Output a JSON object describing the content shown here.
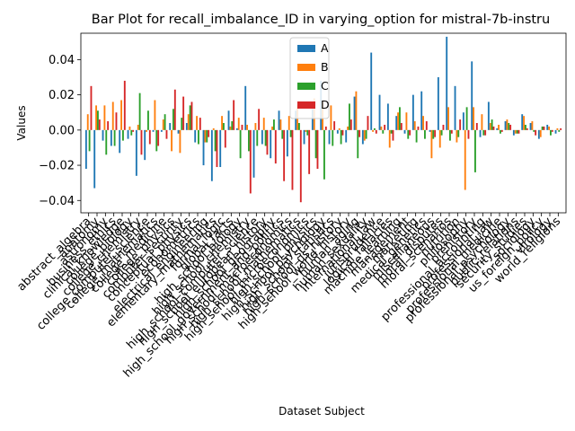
{
  "chart_data": {
    "type": "bar",
    "title": "Bar Plot for recall_imbalance_ID in varying_option for mistral-7b-instru",
    "xlabel": "Dataset Subject",
    "ylabel": "Values",
    "ylim": [
      -0.047,
      0.055
    ],
    "yticks": [
      -0.04,
      -0.02,
      0.0,
      0.02,
      0.04
    ],
    "ytick_labels": [
      "−0.04",
      "−0.02",
      "0.00",
      "0.02",
      "0.04"
    ],
    "legend_position": "upper center",
    "grid": false,
    "categories": [
      "abstract_algebra",
      "anatomy",
      "astronomy",
      "business_ethics",
      "clinical_knowledge",
      "college_biology",
      "college_chemistry",
      "college_computer_science",
      "college_mathematics",
      "college_medicine",
      "college_physics",
      "computer_security",
      "conceptual_physics",
      "econometrics",
      "electrical_engineering",
      "elementary_mathematics",
      "formal_logic",
      "global_facts",
      "high_school_biology",
      "high_school_chemistry",
      "high_school_computer_science",
      "high_school_european_history",
      "high_school_geography",
      "high_school_government_and_politics",
      "high_school_macroeconomics",
      "high_school_mathematics",
      "high_school_microeconomics",
      "high_school_physics",
      "high_school_psychology",
      "high_school_statistics",
      "high_school_us_history",
      "high_school_world_history",
      "human_aging",
      "human_sexuality",
      "international_law",
      "jurisprudence",
      "logical_fallacies",
      "machine_learning",
      "management",
      "marketing",
      "medical_genetics",
      "miscellaneous",
      "moral_disputes",
      "moral_scenarios",
      "nutrition",
      "philosophy",
      "prehistory",
      "professional_accounting",
      "professional_law",
      "professional_medicine",
      "professional_psychology",
      "public_relations",
      "security_studies",
      "sociology",
      "us_foreign_policy",
      "virology",
      "world_religions"
    ],
    "series": [
      {
        "name": "A",
        "color": "#1f77b4",
        "values": [
          -0.022,
          -0.033,
          -0.006,
          -0.009,
          -0.013,
          -0.005,
          -0.026,
          -0.017,
          -0.001,
          -0.001,
          0.004,
          -0.002,
          0.004,
          -0.007,
          -0.02,
          -0.029,
          -0.021,
          0.011,
          0.001,
          0.025,
          -0.027,
          -0.008,
          -0.016,
          0.011,
          -0.015,
          0.011,
          -0.008,
          0.012,
          0.028,
          -0.008,
          -0.002,
          -0.007,
          0.019,
          -0.008,
          0.044,
          0.02,
          0.015,
          0.008,
          -0.002,
          0.02,
          0.022,
          -0.001,
          0.03,
          0.053,
          0.025,
          0.01,
          0.039,
          -0.004,
          0.016,
          0.001,
          0.005,
          -0.003,
          0.009,
          0.004,
          -0.005,
          0.003,
          -0.002
        ]
      },
      {
        "name": "B",
        "color": "#ff7f0e",
        "values": [
          0.009,
          0.014,
          0.014,
          0.016,
          0.017,
          0.002,
          0.003,
          -0.001,
          0.017,
          0.006,
          -0.012,
          -0.013,
          0.009,
          0.008,
          -0.007,
          0.001,
          0.008,
          0.002,
          0.007,
          0.003,
          0.004,
          0.007,
          0.002,
          0.006,
          0.008,
          0.014,
          -0.001,
          0.018,
          0.016,
          0.014,
          0.001,
          0.002,
          0.022,
          -0.006,
          -0.001,
          0.002,
          -0.01,
          0.01,
          0.01,
          0.005,
          0.008,
          -0.016,
          -0.01,
          0.013,
          -0.007,
          -0.034,
          0.013,
          0.009,
          0.004,
          0.003,
          0.006,
          -0.002,
          0.008,
          0.005,
          -0.004,
          0.002,
          0.001
        ]
      },
      {
        "name": "C",
        "color": "#2ca02c",
        "values": [
          -0.012,
          0.011,
          -0.014,
          -0.009,
          -0.006,
          -0.003,
          0.021,
          0.011,
          -0.012,
          0.009,
          0.012,
          0.007,
          0.014,
          -0.008,
          -0.007,
          -0.012,
          0.004,
          0.005,
          -0.016,
          -0.012,
          -0.009,
          -0.009,
          0.006,
          -0.005,
          -0.004,
          0.004,
          -0.003,
          -0.016,
          -0.028,
          -0.009,
          -0.008,
          0.015,
          -0.016,
          -0.005,
          0.001,
          -0.002,
          -0.002,
          0.013,
          -0.005,
          -0.007,
          -0.005,
          -0.005,
          -0.003,
          -0.006,
          -0.004,
          0.013,
          -0.024,
          -0.003,
          0.006,
          -0.002,
          0.004,
          -0.002,
          0.003,
          -0.001,
          0.002,
          -0.003,
          -0.001
        ]
      },
      {
        "name": "D",
        "color": "#d62728",
        "values": [
          0.025,
          0.006,
          0.005,
          0.01,
          0.028,
          -0.001,
          -0.014,
          -0.008,
          -0.009,
          -0.005,
          0.023,
          0.019,
          0.016,
          0.007,
          -0.004,
          -0.021,
          -0.01,
          0.017,
          0.003,
          -0.036,
          0.012,
          -0.014,
          -0.019,
          -0.029,
          -0.034,
          -0.041,
          -0.025,
          -0.022,
          0.002,
          0.005,
          -0.003,
          0.006,
          -0.004,
          0.008,
          -0.002,
          0.003,
          -0.006,
          0.004,
          -0.003,
          0.002,
          0.005,
          -0.004,
          0.003,
          -0.002,
          0.006,
          -0.005,
          0.004,
          -0.003,
          0.002,
          -0.001,
          0.003,
          -0.002,
          0.001,
          -0.003,
          0.002,
          -0.001,
          0.001
        ]
      }
    ],
    "legend": [
      "A",
      "B",
      "C",
      "D"
    ]
  }
}
